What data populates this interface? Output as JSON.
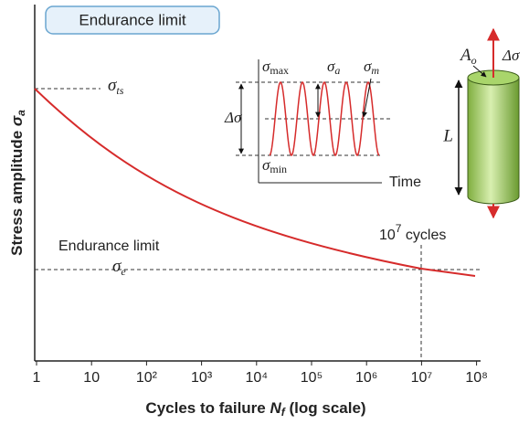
{
  "header": {
    "title": "Endurance limit"
  },
  "axes": {
    "y_label": {
      "text": "Stress amplitude ",
      "symbol": "σ",
      "subscript": "a"
    },
    "x_label": {
      "text": "Cycles to failure ",
      "symbol": "N",
      "subscript": "f",
      "suffix": " (log scale)"
    },
    "x_tick_labels": [
      "1",
      "10",
      "10²",
      "10³",
      "10⁴",
      "10⁵",
      "10⁶",
      "10⁷",
      "10⁸"
    ]
  },
  "annotations": {
    "tensile_strength": {
      "symbol": "σ",
      "subscript": "ts"
    },
    "endurance_text": "Endurance limit",
    "endurance_symbol": {
      "symbol": "σ",
      "subscript": "e"
    },
    "cycles_marker": {
      "base": "10",
      "exp": "7",
      "text": " cycles"
    }
  },
  "inset": {
    "max": {
      "symbol": "σ",
      "subscript": "max"
    },
    "min": {
      "symbol": "σ",
      "subscript": "min"
    },
    "amplitude": {
      "symbol": "σ",
      "subscript": "a"
    },
    "mean": {
      "symbol": "σ",
      "subscript": "m"
    },
    "range": "Δσ",
    "time": "Time"
  },
  "specimen": {
    "area": {
      "symbol": "A",
      "subscript": "o"
    },
    "load": "Δσ",
    "length": "L"
  }
}
